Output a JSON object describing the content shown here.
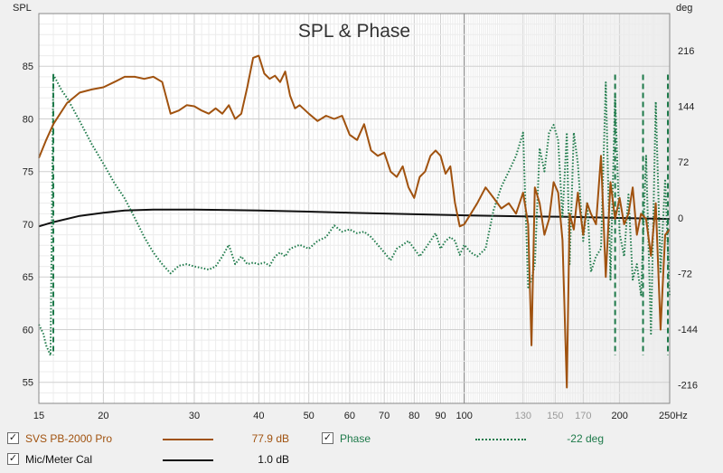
{
  "chart_data": {
    "type": "line",
    "title": "SPL & Phase",
    "left_axis": {
      "label": "SPL",
      "ylim": [
        53,
        90
      ],
      "ticks": [
        55,
        60,
        65,
        70,
        75,
        80,
        85
      ]
    },
    "right_axis": {
      "label": "deg",
      "ylim": [
        -240,
        264
      ],
      "ticks": [
        -216,
        -144,
        -72,
        0,
        72,
        144,
        216
      ]
    },
    "x_axis": {
      "scale": "log",
      "xlim": [
        15,
        250
      ],
      "labeled_ticks": [
        15,
        20,
        30,
        40,
        50,
        60,
        70,
        80,
        90,
        100,
        130,
        150,
        170,
        200
      ],
      "dim_ticks": [
        130,
        150,
        170
      ],
      "end_label": "250Hz"
    },
    "grid": true,
    "series": [
      {
        "name": "SVS PB-2000 Pro",
        "axis": "left",
        "color": "#a0520f",
        "style": "solid",
        "x": [
          15,
          15.5,
          16,
          17,
          18,
          19,
          20,
          21,
          22,
          23,
          24,
          25,
          26,
          27,
          28,
          29,
          30,
          31,
          32,
          33,
          34,
          35,
          36,
          37,
          38,
          39,
          40,
          41,
          42,
          43,
          44,
          45,
          46,
          47,
          48,
          50,
          52,
          54,
          56,
          58,
          60,
          62,
          64,
          66,
          68,
          70,
          72,
          74,
          76,
          78,
          80,
          82,
          84,
          86,
          88,
          90,
          92,
          94,
          96,
          98,
          100,
          103,
          106,
          110,
          114,
          118,
          122,
          126,
          130,
          133,
          135,
          137,
          140,
          143,
          146,
          149,
          152,
          155,
          158,
          160,
          163,
          166,
          170,
          173,
          176,
          180,
          184,
          188,
          192,
          196,
          200,
          204,
          208,
          212,
          216,
          220,
          225,
          230,
          235,
          240,
          245,
          250
        ],
        "y": [
          76.3,
          78,
          79.5,
          81.5,
          82.5,
          82.8,
          83,
          83.5,
          84,
          84,
          83.8,
          84,
          83.5,
          80.5,
          80.8,
          81.3,
          81.2,
          80.8,
          80.5,
          81,
          80.5,
          81.3,
          80,
          80.5,
          83,
          85.8,
          86,
          84.3,
          83.8,
          84.1,
          83.5,
          84.5,
          82.2,
          81,
          81.3,
          80.5,
          79.8,
          80.3,
          80,
          80.3,
          78.5,
          78,
          79.5,
          77,
          76.5,
          76.8,
          75,
          74.5,
          75.5,
          73.5,
          72.5,
          74.5,
          75,
          76.5,
          77,
          76.5,
          74.8,
          75.5,
          72,
          69.8,
          70,
          71,
          72,
          73.5,
          72.5,
          71.5,
          72,
          71,
          73,
          70,
          58.5,
          73.5,
          72,
          69,
          70.5,
          74,
          73,
          68.5,
          54.5,
          71,
          69.5,
          73,
          69,
          72,
          71,
          70,
          76.5,
          65,
          74,
          70.5,
          72.5,
          70,
          71,
          73.5,
          69,
          71,
          70.5,
          67,
          72,
          60,
          69,
          69.5
        ]
      },
      {
        "name": "Phase",
        "axis": "right",
        "color": "#1e7a4a",
        "style": "dotted",
        "x": [
          15,
          15.3,
          15.5,
          15.8,
          16,
          16.3,
          16.6,
          17,
          17.5,
          18,
          19,
          20,
          21,
          22,
          23,
          24,
          25,
          26,
          27,
          28,
          29,
          30,
          31,
          32,
          33,
          34,
          35,
          36,
          37,
          38,
          39,
          40,
          41,
          42,
          43,
          44,
          45,
          46,
          48,
          50,
          52,
          54,
          56,
          58,
          60,
          62,
          64,
          66,
          68,
          70,
          72,
          74,
          76,
          78,
          80,
          82,
          84,
          86,
          88,
          90,
          92,
          94,
          96,
          98,
          100,
          103,
          106,
          110,
          114,
          118,
          122,
          126,
          130,
          133,
          135,
          137,
          140,
          143,
          146,
          149,
          152,
          155,
          158,
          160,
          163,
          166,
          170,
          173,
          176,
          180,
          184,
          188,
          192,
          196,
          200,
          204,
          208,
          212,
          216,
          220,
          225,
          230,
          235,
          240,
          245,
          250
        ],
        "y": [
          -138,
          -150,
          -165,
          -178,
          185,
          175,
          165,
          155,
          140,
          125,
          95,
          70,
          45,
          25,
          0,
          -25,
          -45,
          -60,
          -72,
          -62,
          -60,
          -63,
          -65,
          -67,
          -63,
          -50,
          -35,
          -60,
          -50,
          -60,
          -58,
          -60,
          -58,
          -62,
          -50,
          -45,
          -50,
          -40,
          -35,
          -40,
          -30,
          -25,
          -10,
          -18,
          -15,
          -20,
          -18,
          -25,
          -35,
          -45,
          -55,
          -40,
          -35,
          -30,
          -40,
          -50,
          -40,
          -30,
          -20,
          -40,
          -30,
          -25,
          -30,
          -48,
          -35,
          -45,
          -50,
          -40,
          10,
          40,
          60,
          80,
          110,
          -90,
          -80,
          -60,
          90,
          60,
          110,
          120,
          100,
          0,
          110,
          -60,
          110,
          70,
          -30,
          20,
          -70,
          -50,
          -40,
          175,
          -80,
          160,
          -20,
          -50,
          30,
          -80,
          -60,
          -100,
          80,
          -150,
          150,
          -70,
          50,
          -100
        ]
      },
      {
        "name": "Phase wrap markers",
        "axis": "right",
        "color": "#1e7a4a",
        "style": "dashed",
        "vlines": [
          {
            "x": 16,
            "y_from": 185,
            "y_to": -178
          },
          {
            "x": 196,
            "y_from": 185,
            "y_to": -178
          },
          {
            "x": 222,
            "y_from": 185,
            "y_to": -178
          },
          {
            "x": 248,
            "y_from": 185,
            "y_to": -178
          }
        ]
      },
      {
        "name": "Mic/Meter Cal",
        "axis": "left",
        "color": "#111111",
        "style": "solid",
        "x": [
          15,
          16,
          18,
          20,
          22,
          25,
          28,
          30,
          35,
          40,
          50,
          60,
          80,
          100,
          130,
          160,
          200,
          250
        ],
        "y": [
          69.8,
          70.2,
          70.8,
          71.1,
          71.3,
          71.4,
          71.4,
          71.4,
          71.35,
          71.3,
          71.2,
          71.1,
          70.95,
          70.85,
          70.75,
          70.7,
          70.6,
          70.5
        ]
      }
    ]
  },
  "legend": {
    "items": [
      {
        "checked": true,
        "label": "SVS PB-2000 Pro",
        "value": "77.9 dB",
        "color": "#a0520f"
      },
      {
        "checked": true,
        "label": "Phase",
        "value": "-22 deg",
        "color": "#1e7a4a"
      },
      {
        "checked": true,
        "label": "Mic/Meter Cal",
        "value": "1.0 dB",
        "color": "#111111"
      }
    ],
    "check_mark": "✓"
  }
}
